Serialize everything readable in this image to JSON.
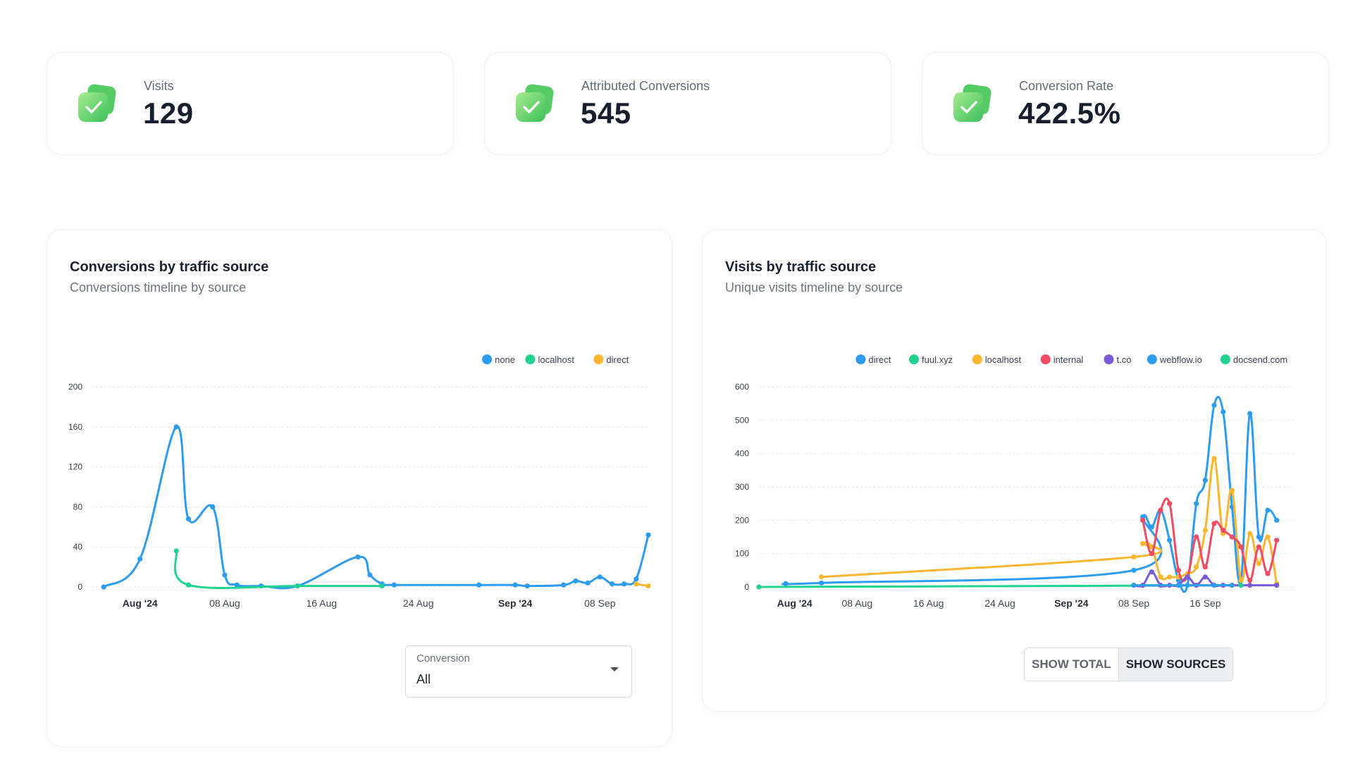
{
  "kpis": [
    {
      "label": "Visits",
      "value": "129"
    },
    {
      "label": "Attributed Conversions",
      "value": "545"
    },
    {
      "label": "Conversion Rate",
      "value": "422.5%"
    }
  ],
  "colors": {
    "blue": "#2d9cf0",
    "green": "#22d38f",
    "orange": "#fbb630",
    "red": "#ef4b62",
    "purple": "#7a5cd9",
    "icon_light": "#8de28a",
    "icon_dark": "#3fc05a"
  },
  "conversions_card": {
    "title": "Conversions by traffic source",
    "subtitle": "Conversions timeline by source",
    "select": {
      "label": "Conversion",
      "value": "All"
    }
  },
  "visits_card": {
    "title": "Visits by traffic source",
    "subtitle": "Unique visits timeline by source",
    "toggle": {
      "total_label": "SHOW TOTAL",
      "sources_label": "SHOW SOURCES",
      "active": "sources"
    }
  },
  "chart_data": [
    {
      "type": "line",
      "title": "Conversions by traffic source",
      "xlabel": "",
      "ylabel": "",
      "ylim": [
        0,
        200
      ],
      "yticks": [
        0,
        40,
        80,
        120,
        160,
        200
      ],
      "xlim": [
        "2024-07-28",
        "2024-09-12"
      ],
      "xticks": [
        {
          "label": "Aug '24",
          "date": "2024-08-01"
        },
        {
          "label": "08 Aug",
          "date": "2024-08-08"
        },
        {
          "label": "16 Aug",
          "date": "2024-08-16"
        },
        {
          "label": "24 Aug",
          "date": "2024-08-24"
        },
        {
          "label": "Sep '24",
          "date": "2024-09-01"
        },
        {
          "label": "08 Sep",
          "date": "2024-09-08"
        }
      ],
      "grid": true,
      "legend_position": "top-right",
      "series": [
        {
          "name": "none",
          "color": "#2d9cf0",
          "points": [
            [
              "2024-07-29",
              0
            ],
            [
              "2024-08-01",
              28
            ],
            [
              "2024-08-04",
              160
            ],
            [
              "2024-08-05",
              68
            ],
            [
              "2024-08-07",
              80
            ],
            [
              "2024-08-08",
              12
            ],
            [
              "2024-08-09",
              2
            ],
            [
              "2024-08-11",
              1
            ],
            [
              "2024-08-14",
              1
            ],
            [
              "2024-08-19",
              30
            ],
            [
              "2024-08-20",
              12
            ],
            [
              "2024-08-21",
              3
            ],
            [
              "2024-08-22",
              2
            ],
            [
              "2024-08-29",
              2
            ],
            [
              "2024-09-01",
              2
            ],
            [
              "2024-09-02",
              1
            ],
            [
              "2024-09-05",
              2
            ],
            [
              "2024-09-06",
              6
            ],
            [
              "2024-09-07",
              4
            ],
            [
              "2024-09-08",
              10
            ],
            [
              "2024-09-09",
              3
            ],
            [
              "2024-09-10",
              3
            ],
            [
              "2024-09-11",
              8
            ],
            [
              "2024-09-12",
              52
            ]
          ]
        },
        {
          "name": "localhost",
          "color": "#22d38f",
          "points": [
            [
              "2024-08-04",
              36
            ],
            [
              "2024-08-05",
              2
            ],
            [
              "2024-08-14",
              1
            ],
            [
              "2024-08-21",
              1
            ]
          ]
        },
        {
          "name": "direct",
          "color": "#fbb630",
          "points": [
            [
              "2024-09-11",
              3
            ],
            [
              "2024-09-12",
              1
            ]
          ]
        }
      ]
    },
    {
      "type": "line",
      "title": "Visits by traffic source",
      "xlabel": "",
      "ylabel": "",
      "ylim": [
        0,
        600
      ],
      "yticks": [
        0,
        100,
        200,
        300,
        400,
        500,
        600
      ],
      "xlim": [
        "2024-07-28",
        "2024-09-26"
      ],
      "xticks": [
        {
          "label": "Aug '24",
          "date": "2024-08-01"
        },
        {
          "label": "08 Aug",
          "date": "2024-08-08"
        },
        {
          "label": "16 Aug",
          "date": "2024-08-16"
        },
        {
          "label": "24 Aug",
          "date": "2024-08-24"
        },
        {
          "label": "Sep '24",
          "date": "2024-09-01"
        },
        {
          "label": "08 Sep",
          "date": "2024-09-08"
        },
        {
          "label": "16 Sep",
          "date": "2024-09-16"
        }
      ],
      "grid": true,
      "legend_position": "top-right",
      "series": [
        {
          "name": "direct",
          "color": "#2d9cf0",
          "points": [
            [
              "2024-07-31",
              10
            ],
            [
              "2024-08-04",
              12
            ],
            [
              "2024-09-08",
              50
            ],
            [
              "2024-09-09",
              210
            ],
            [
              "2024-09-10",
              180
            ],
            [
              "2024-09-11",
              230
            ],
            [
              "2024-09-12",
              140
            ],
            [
              "2024-09-13",
              20
            ],
            [
              "2024-09-14",
              5
            ],
            [
              "2024-09-15",
              250
            ],
            [
              "2024-09-16",
              320
            ],
            [
              "2024-09-17",
              545
            ],
            [
              "2024-09-18",
              525
            ],
            [
              "2024-09-19",
              240
            ],
            [
              "2024-09-20",
              20
            ],
            [
              "2024-09-21",
              520
            ],
            [
              "2024-09-22",
              150
            ],
            [
              "2024-09-23",
              230
            ],
            [
              "2024-09-24",
              200
            ]
          ]
        },
        {
          "name": "fuul.xyz",
          "color": "#22d38f",
          "points": [
            [
              "2024-07-28",
              0
            ],
            [
              "2024-09-20",
              5
            ]
          ]
        },
        {
          "name": "localhost",
          "color": "#fbb630",
          "points": [
            [
              "2024-08-04",
              30
            ],
            [
              "2024-09-08",
              90
            ],
            [
              "2024-09-09",
              130
            ],
            [
              "2024-09-10",
              120
            ],
            [
              "2024-09-11",
              30
            ],
            [
              "2024-09-12",
              30
            ],
            [
              "2024-09-13",
              30
            ],
            [
              "2024-09-14",
              40
            ],
            [
              "2024-09-15",
              60
            ],
            [
              "2024-09-16",
              170
            ],
            [
              "2024-09-17",
              385
            ],
            [
              "2024-09-18",
              160
            ],
            [
              "2024-09-19",
              290
            ],
            [
              "2024-09-20",
              20
            ],
            [
              "2024-09-21",
              160
            ],
            [
              "2024-09-22",
              70
            ],
            [
              "2024-09-23",
              150
            ],
            [
              "2024-09-24",
              10
            ]
          ]
        },
        {
          "name": "internal",
          "color": "#ef4b62",
          "points": [
            [
              "2024-09-09",
              200
            ],
            [
              "2024-09-10",
              100
            ],
            [
              "2024-09-11",
              230
            ],
            [
              "2024-09-12",
              250
            ],
            [
              "2024-09-13",
              50
            ],
            [
              "2024-09-14",
              30
            ],
            [
              "2024-09-15",
              150
            ],
            [
              "2024-09-16",
              60
            ],
            [
              "2024-09-17",
              190
            ],
            [
              "2024-09-18",
              170
            ],
            [
              "2024-09-19",
              150
            ],
            [
              "2024-09-20",
              120
            ],
            [
              "2024-09-21",
              20
            ],
            [
              "2024-09-22",
              120
            ],
            [
              "2024-09-23",
              40
            ],
            [
              "2024-09-24",
              140
            ]
          ]
        },
        {
          "name": "t.co",
          "color": "#7a5cd9",
          "points": [
            [
              "2024-09-08",
              5
            ],
            [
              "2024-09-09",
              5
            ],
            [
              "2024-09-10",
              45
            ],
            [
              "2024-09-11",
              5
            ],
            [
              "2024-09-12",
              5
            ],
            [
              "2024-09-13",
              5
            ],
            [
              "2024-09-14",
              30
            ],
            [
              "2024-09-15",
              5
            ],
            [
              "2024-09-16",
              30
            ],
            [
              "2024-09-17",
              5
            ],
            [
              "2024-09-18",
              5
            ],
            [
              "2024-09-20",
              5
            ],
            [
              "2024-09-21",
              5
            ],
            [
              "2024-09-24",
              5
            ]
          ]
        },
        {
          "name": "webflow.io",
          "color": "#2d9cf0",
          "points": [
            [
              "2024-09-08",
              5
            ],
            [
              "2024-09-13",
              5
            ],
            [
              "2024-09-17",
              5
            ],
            [
              "2024-09-19",
              5
            ]
          ]
        },
        {
          "name": "docsend.com",
          "color": "#22d38f",
          "points": [
            [
              "2024-09-20",
              5
            ]
          ]
        }
      ]
    }
  ]
}
